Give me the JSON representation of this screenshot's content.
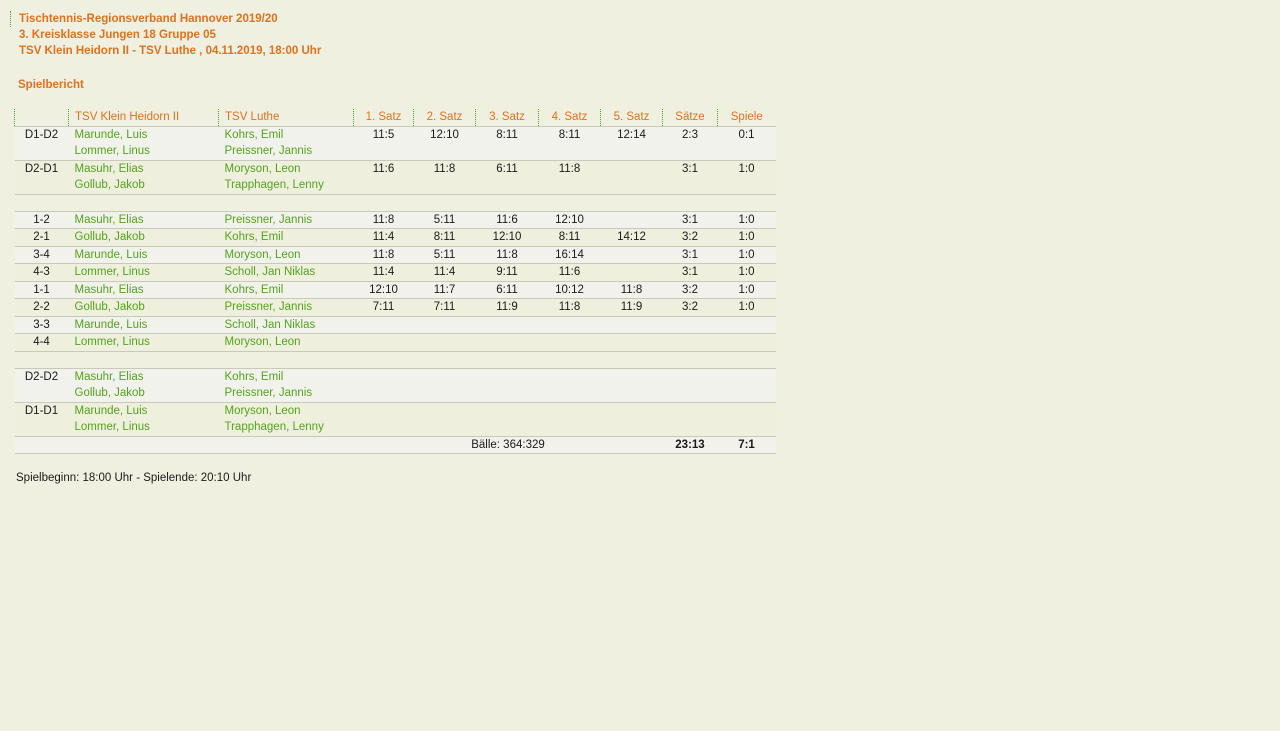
{
  "page": {
    "title_line1": "Tischtennis-Regionsverband Hannover 2019/20",
    "title_line2": "3. Kreisklasse Jungen 18 Gruppe 05",
    "title_line3": "TSV Klein Heidorn II - TSV Luthe , 04.11.2019, 18:00 Uhr",
    "section_title": "Spielbericht",
    "footer_note": "Spielbeginn: 18:00 Uhr - Spielende: 20:10 Uhr"
  },
  "colors": {
    "page_bg": "#f0f0e1",
    "accent_orange": "#e0711d",
    "link_green": "#55a21e",
    "dotted_separator_green": "#4fa32a",
    "row_border": "#c9c9bb"
  },
  "table": {
    "columns": [
      "",
      "TSV Klein Heidorn II",
      "TSV Luthe",
      "1. Satz",
      "2. Satz",
      "3. Satz",
      "4. Satz",
      "5. Satz",
      "Sätze",
      "Spiele"
    ],
    "rows": [
      {
        "label": "D1-D2",
        "home": [
          "Marunde, Luis",
          "Lommer, Linus"
        ],
        "away": [
          "Kohrs, Emil",
          "Preissner, Jannis"
        ],
        "sets": [
          "11:5",
          "12:10",
          "8:11",
          "8:11",
          "12:14"
        ],
        "saetze": "2:3",
        "spiele": "0:1"
      },
      {
        "label": "D2-D1",
        "home": [
          "Masuhr, Elias",
          "Gollub, Jakob"
        ],
        "away": [
          "Moryson, Leon",
          "Trapphagen, Lenny"
        ],
        "sets": [
          "11:6",
          "11:8",
          "6:11",
          "11:8",
          ""
        ],
        "saetze": "3:1",
        "spiele": "1:0"
      },
      {
        "type": "separator"
      },
      {
        "label": "1-2",
        "home": [
          "Masuhr, Elias"
        ],
        "away": [
          "Preissner, Jannis"
        ],
        "sets": [
          "11:8",
          "5:11",
          "11:6",
          "12:10",
          ""
        ],
        "saetze": "3:1",
        "spiele": "1:0"
      },
      {
        "label": "2-1",
        "home": [
          "Gollub, Jakob"
        ],
        "away": [
          "Kohrs, Emil"
        ],
        "sets": [
          "11:4",
          "8:11",
          "12:10",
          "8:11",
          "14:12"
        ],
        "saetze": "3:2",
        "spiele": "1:0"
      },
      {
        "label": "3-4",
        "home": [
          "Marunde, Luis"
        ],
        "away": [
          "Moryson, Leon"
        ],
        "sets": [
          "11:8",
          "5:11",
          "11:8",
          "16:14",
          ""
        ],
        "saetze": "3:1",
        "spiele": "1:0"
      },
      {
        "label": "4-3",
        "home": [
          "Lommer, Linus"
        ],
        "away": [
          "Scholl, Jan Niklas"
        ],
        "sets": [
          "11:4",
          "11:4",
          "9:11",
          "11:6",
          ""
        ],
        "saetze": "3:1",
        "spiele": "1:0"
      },
      {
        "label": "1-1",
        "home": [
          "Masuhr, Elias"
        ],
        "away": [
          "Kohrs, Emil"
        ],
        "sets": [
          "12:10",
          "11:7",
          "6:11",
          "10:12",
          "11:8"
        ],
        "saetze": "3:2",
        "spiele": "1:0"
      },
      {
        "label": "2-2",
        "home": [
          "Gollub, Jakob"
        ],
        "away": [
          "Preissner, Jannis"
        ],
        "sets": [
          "7:11",
          "7:11",
          "11:9",
          "11:8",
          "11:9"
        ],
        "saetze": "3:2",
        "spiele": "1:0"
      },
      {
        "label": "3-3",
        "home": [
          "Marunde, Luis"
        ],
        "away": [
          "Scholl, Jan Niklas"
        ],
        "sets": [
          "",
          "",
          "",
          "",
          ""
        ],
        "saetze": "",
        "spiele": ""
      },
      {
        "label": "4-4",
        "home": [
          "Lommer, Linus"
        ],
        "away": [
          "Moryson, Leon"
        ],
        "sets": [
          "",
          "",
          "",
          "",
          ""
        ],
        "saetze": "",
        "spiele": ""
      },
      {
        "type": "separator"
      },
      {
        "label": "D2-D2",
        "home": [
          "Masuhr, Elias",
          "Gollub, Jakob"
        ],
        "away": [
          "Kohrs, Emil",
          "Preissner, Jannis"
        ],
        "sets": [
          "",
          "",
          "",
          "",
          ""
        ],
        "saetze": "",
        "spiele": ""
      },
      {
        "label": "D1-D1",
        "home": [
          "Marunde, Luis",
          "Lommer, Linus"
        ],
        "away": [
          "Moryson, Leon",
          "Trapphagen, Lenny"
        ],
        "sets": [
          "",
          "",
          "",
          "",
          ""
        ],
        "saetze": "",
        "spiele": ""
      }
    ],
    "footer": {
      "balls_label": "Bälle: 364:329",
      "sets_total": "23:13",
      "games_total": "7:1"
    }
  }
}
